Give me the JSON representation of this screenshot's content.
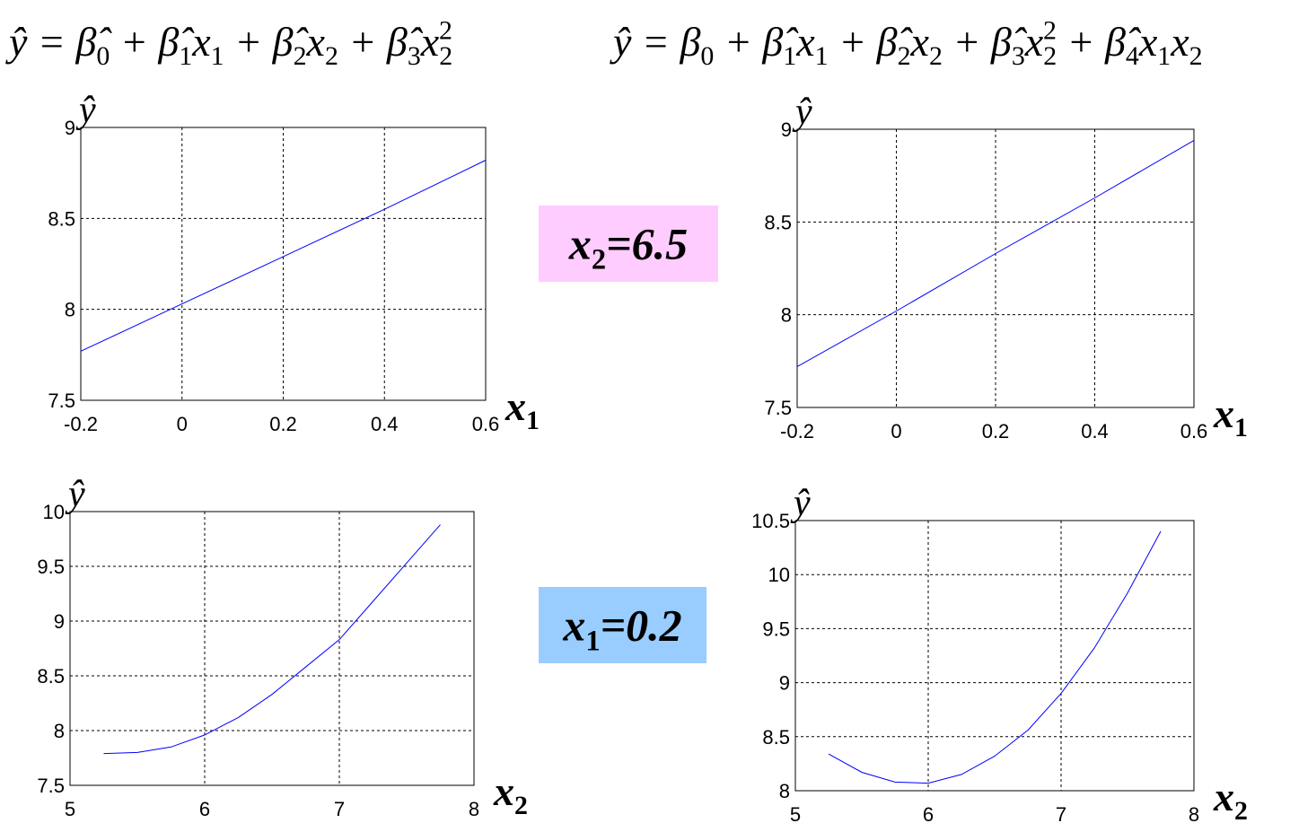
{
  "formulas": [
    [
      {
        "base": "ŷ = β̂",
        "sub": "0"
      },
      {
        "base": " + β̂",
        "sub": "1"
      },
      {
        "base": "x",
        "sub": "1"
      },
      {
        "base": " + β̂",
        "sub": "2"
      },
      {
        "base": "x",
        "sub": "2"
      },
      {
        "base": " + β̂",
        "sub": "3"
      },
      {
        "base": "x",
        "sub": "2",
        "sup": "2"
      }
    ],
    [
      {
        "base": "ŷ = β",
        "sub": "0"
      },
      {
        "base": " + β̂",
        "sub": "1"
      },
      {
        "base": "x",
        "sub": "1"
      },
      {
        "base": " + β̂",
        "sub": "2"
      },
      {
        "base": "x",
        "sub": "2"
      },
      {
        "base": " + β̂",
        "sub": "3"
      },
      {
        "base": "x",
        "sub": "2",
        "sup": "2"
      },
      {
        "base": " + β̂",
        "sub": "4"
      },
      {
        "base": "x",
        "sub": "1"
      },
      {
        "base": "x",
        "sub": "2"
      }
    ]
  ],
  "notes": [
    {
      "tokens": [
        {
          "base": "x",
          "sub": "2"
        },
        {
          "base": "=6.5"
        }
      ],
      "color": "#ffccff"
    },
    {
      "tokens": [
        {
          "base": "x",
          "sub": "1"
        },
        {
          "base": "=0.2"
        }
      ],
      "color": "#99ccff"
    }
  ],
  "chart_data": [
    {
      "type": "line",
      "ylabel": "ŷ",
      "xlabel": [
        {
          "base": "x",
          "sub": "1"
        }
      ],
      "grid": true,
      "x": [
        -0.2,
        0,
        0.2,
        0.4,
        0.6
      ],
      "series": [
        {
          "color": "#0000ff",
          "values": [
            7.77,
            8.03,
            8.29,
            8.55,
            8.82
          ]
        }
      ],
      "xlim": [
        -0.2,
        0.6
      ],
      "xticks": [
        -0.2,
        0,
        0.2,
        0.4,
        0.6
      ],
      "ylim": [
        7.5,
        9
      ],
      "yticks": [
        7.5,
        8,
        8.5,
        9
      ]
    },
    {
      "type": "line",
      "ylabel": "ŷ",
      "xlabel": [
        {
          "base": "x",
          "sub": "1"
        }
      ],
      "grid": true,
      "x": [
        -0.2,
        0,
        0.2,
        0.4,
        0.6
      ],
      "series": [
        {
          "color": "#0000ff",
          "values": [
            7.72,
            8.02,
            8.33,
            8.63,
            8.94
          ]
        }
      ],
      "xlim": [
        -0.2,
        0.6
      ],
      "xticks": [
        -0.2,
        0,
        0.2,
        0.4,
        0.6
      ],
      "ylim": [
        7.5,
        9
      ],
      "yticks": [
        7.5,
        8,
        8.5,
        9
      ]
    },
    {
      "type": "line",
      "ylabel": "ŷ",
      "xlabel": [
        {
          "base": "x",
          "sub": "2"
        }
      ],
      "grid": true,
      "x": [
        5.25,
        5.5,
        5.75,
        6,
        6.25,
        6.5,
        6.75,
        7,
        7.25,
        7.5,
        7.75
      ],
      "series": [
        {
          "color": "#0000ff",
          "values": [
            7.79,
            7.8,
            7.85,
            7.96,
            8.12,
            8.33,
            8.58,
            8.83,
            9.18,
            9.53,
            9.88
          ]
        }
      ],
      "xlim": [
        5,
        8
      ],
      "xticks": [
        5,
        6,
        7,
        8
      ],
      "ylim": [
        7.5,
        10
      ],
      "yticks": [
        7.5,
        8,
        8.5,
        9,
        9.5,
        10
      ]
    },
    {
      "type": "line",
      "ylabel": "ŷ",
      "xlabel": [
        {
          "base": "x",
          "sub": "2"
        }
      ],
      "grid": true,
      "x": [
        5.25,
        5.5,
        5.75,
        6,
        6.25,
        6.5,
        6.75,
        7,
        7.25,
        7.5,
        7.75
      ],
      "series": [
        {
          "color": "#0000ff",
          "values": [
            8.34,
            8.17,
            8.08,
            8.07,
            8.15,
            8.32,
            8.56,
            8.9,
            9.32,
            9.83,
            10.4
          ]
        }
      ],
      "xlim": [
        5,
        8
      ],
      "xticks": [
        5,
        6,
        7,
        8
      ],
      "ylim": [
        8,
        10.5
      ],
      "yticks": [
        8,
        8.5,
        9,
        9.5,
        10,
        10.5
      ]
    }
  ]
}
